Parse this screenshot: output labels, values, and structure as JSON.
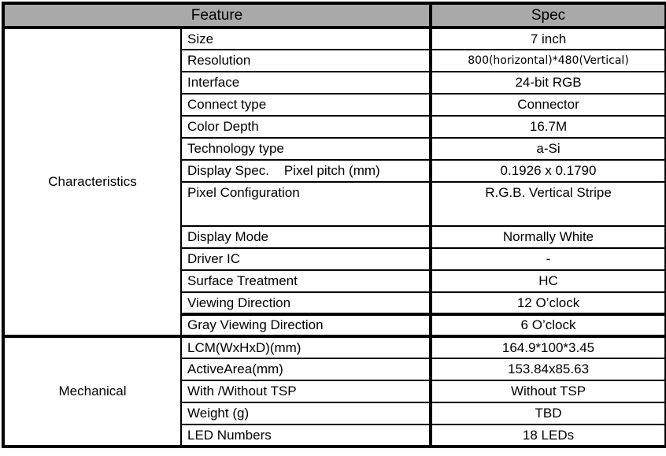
{
  "colors": {
    "header_bg": "#a9a9a9",
    "border": "#000000",
    "background": "#ffffff",
    "text": "#000000"
  },
  "header": {
    "feature": "Feature",
    "spec": "Spec"
  },
  "sections": [
    {
      "name": "Characteristics",
      "rows": [
        {
          "feature": "Size",
          "spec": "7 inch"
        },
        {
          "feature": "Resolution",
          "spec": "800(horizontal)*480(Vertical)"
        },
        {
          "feature": "Interface",
          "spec": "24-bit RGB"
        },
        {
          "feature": "Connect type",
          "spec": "Connector"
        },
        {
          "feature": "Color Depth",
          "spec": "16.7M"
        },
        {
          "feature": "Technology type",
          "spec": "a-Si"
        },
        {
          "feature": "Display Spec.    Pixel pitch (mm)",
          "spec": "0.1926 x 0.1790"
        },
        {
          "feature": "Pixel Configuration",
          "spec": "R.G.B. Vertical Stripe"
        },
        {
          "feature": "Display Mode",
          "spec": "Normally White"
        },
        {
          "feature": "Driver IC",
          "spec": "-"
        },
        {
          "feature": "Surface Treatment",
          "spec": "HC"
        },
        {
          "feature": "Viewing Direction",
          "spec": "12 O’clock"
        },
        {
          "feature": "Gray Viewing Direction",
          "spec": "6 O’clock"
        }
      ]
    },
    {
      "name": "Mechanical",
      "rows": [
        {
          "feature": "LCM(WxHxD)(mm)",
          "spec": "164.9*100*3.45"
        },
        {
          "feature": "ActiveArea(mm)",
          "spec": "153.84x85.63"
        },
        {
          "feature": "With /Without TSP",
          "spec": "Without TSP"
        },
        {
          "feature": "Weight (g)",
          "spec": "TBD"
        },
        {
          "feature": "LED Numbers",
          "spec": "18 LEDs"
        }
      ]
    }
  ]
}
